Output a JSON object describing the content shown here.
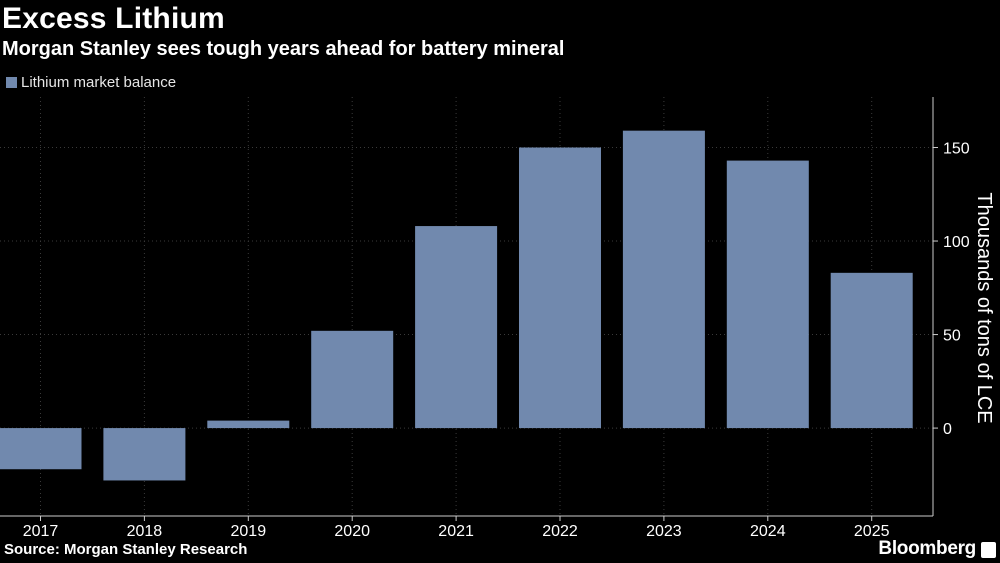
{
  "header": {
    "title": "Excess Lithium",
    "subtitle": "Morgan Stanley sees tough years ahead for battery mineral"
  },
  "legend": {
    "label": "Lithium market balance",
    "color": "#7189AE"
  },
  "footer": {
    "source": "Source: Morgan Stanley Research",
    "brand": "Bloomberg"
  },
  "colors": {
    "background": "#000000",
    "bar": "#7189AE",
    "grid": "#3a3a3a",
    "axis": "#cccccc",
    "text": "#ffffff"
  },
  "chart_data": {
    "type": "bar",
    "title": "Excess Lithium",
    "subtitle": "Morgan Stanley sees tough years ahead for battery mineral",
    "categories": [
      "2017",
      "2018",
      "2019",
      "2020",
      "2021",
      "2022",
      "2023",
      "2024",
      "2025"
    ],
    "series": [
      {
        "name": "Lithium market balance",
        "values": [
          -22,
          -28,
          4,
          52,
          108,
          150,
          159,
          143,
          83
        ]
      }
    ],
    "xlabel": "",
    "ylabel": "Thousands of tons of LCE",
    "ylim": [
      -47,
      177
    ],
    "yticks": [
      0,
      50,
      100,
      150
    ],
    "y_axis_position": "right",
    "grid": true,
    "grid_style": "dotted",
    "legend_position": "top-left"
  }
}
